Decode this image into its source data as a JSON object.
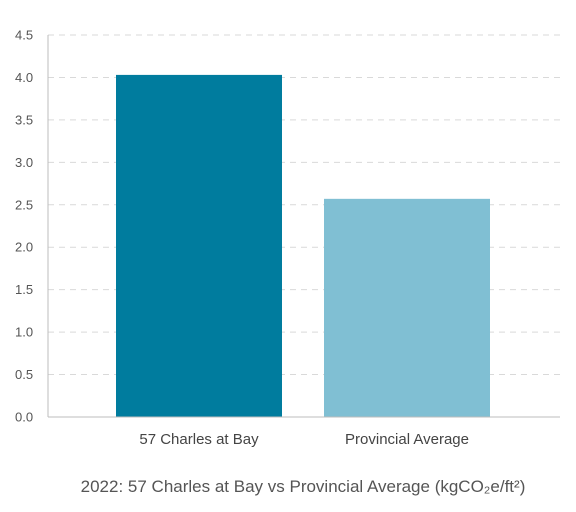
{
  "chart_data": {
    "type": "bar",
    "title": "2022: 57 Charles at Bay vs Provincial Average (kgCO₂e/ft²)",
    "xlabel": "",
    "ylabel": "",
    "categories": [
      "57 Charles at Bay",
      "Provincial Average"
    ],
    "values": [
      4.03,
      2.57
    ],
    "colors": [
      "#007c9e",
      "#80bfd3"
    ],
    "ylim": [
      0,
      4.5
    ],
    "yticks": [
      "0.0",
      "0.5",
      "1.0",
      "1.5",
      "2.0",
      "2.5",
      "3.0",
      "3.5",
      "4.0",
      "4.5"
    ],
    "grid": true,
    "legend": "none"
  }
}
